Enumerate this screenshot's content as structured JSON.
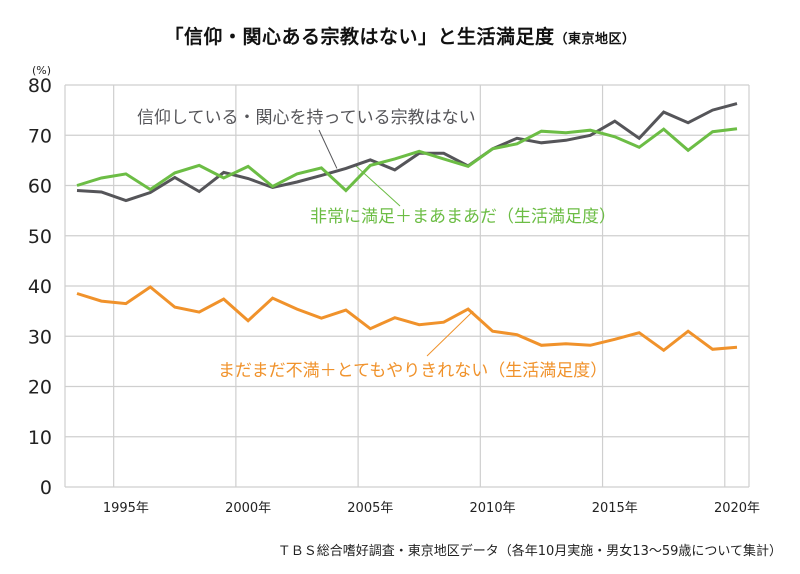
{
  "title": {
    "main": "「信仰・関心ある宗教はない」と生活満足度",
    "sub": "（東京地区）"
  },
  "source_note": "ＴＢＳ総合嗜好調査・東京地区データ（各年10月実施・男女13〜59歳について集計）",
  "chart_data": {
    "type": "line",
    "title": "「信仰・関心ある宗教はない」と生活満足度（東京地区）",
    "xlabel": "",
    "ylabel": "(%)",
    "ylim": [
      0,
      80
    ],
    "yticks": [
      "0",
      "10",
      "20",
      "30",
      "40",
      "50",
      "60",
      "70",
      "80"
    ],
    "ytick_values": [
      0,
      10,
      20,
      30,
      40,
      50,
      60,
      70,
      80
    ],
    "grid": true,
    "x": [
      1993,
      1994,
      1995,
      1996,
      1997,
      1998,
      1999,
      2000,
      2001,
      2002,
      2003,
      2004,
      2005,
      2006,
      2007,
      2008,
      2009,
      2010,
      2011,
      2012,
      2013,
      2014,
      2015,
      2016,
      2017,
      2018,
      2019,
      2020
    ],
    "xtick_labels": [
      {
        "year": 1995,
        "label": "1995年"
      },
      {
        "year": 2000,
        "label": "2000年"
      },
      {
        "year": 2005,
        "label": "2005年"
      },
      {
        "year": 2010,
        "label": "2010年"
      },
      {
        "year": 2015,
        "label": "2015年"
      },
      {
        "year": 2020,
        "label": "2020年"
      }
    ],
    "series": [
      {
        "name": "信仰している・関心を持っている宗教はない",
        "color": "#555559",
        "label_color": "#555559",
        "values": [
          59.0,
          58.7,
          57.0,
          58.6,
          61.6,
          58.8,
          62.6,
          61.4,
          59.6,
          60.7,
          62.0,
          63.4,
          65.1,
          63.1,
          66.4,
          66.4,
          63.9,
          67.3,
          69.4,
          68.5,
          69.0,
          70.0,
          72.8,
          69.4,
          74.6,
          72.5,
          75.0,
          76.3
        ]
      },
      {
        "name": "非常に満足＋まあまあだ（生活満足度）",
        "color": "#6cbd45",
        "label_color": "#6cbd45",
        "values": [
          60.0,
          61.5,
          62.3,
          59.2,
          62.5,
          64.0,
          61.5,
          63.8,
          59.8,
          62.3,
          63.5,
          59.0,
          64.0,
          65.3,
          66.8,
          65.3,
          63.8,
          67.3,
          68.3,
          70.8,
          70.5,
          71.0,
          69.7,
          67.6,
          71.2,
          67.0,
          70.7,
          71.3
        ]
      },
      {
        "name": "まだまだ不満＋とてもやりきれない（生活満足度）",
        "color": "#f0922b",
        "label_color": "#f0922b",
        "values": [
          38.5,
          37.0,
          36.5,
          39.8,
          35.8,
          34.8,
          37.4,
          33.1,
          37.6,
          35.4,
          33.6,
          35.2,
          31.5,
          33.7,
          32.3,
          32.8,
          35.4,
          31.0,
          30.3,
          28.2,
          28.5,
          28.2,
          29.4,
          30.7,
          27.2,
          31.0,
          27.4,
          27.8
        ]
      }
    ],
    "annotations": [
      {
        "text": "信仰している・関心を持っている宗教はない",
        "series": 0,
        "points_to_year": 2004
      },
      {
        "text": "非常に満足＋まあまあだ（生活満足度）",
        "series": 1,
        "points_to_year": 2005
      },
      {
        "text": "まだまだ不満＋とてもやりきれない（生活満足度）",
        "series": 2,
        "points_to_year": 2009
      }
    ]
  }
}
